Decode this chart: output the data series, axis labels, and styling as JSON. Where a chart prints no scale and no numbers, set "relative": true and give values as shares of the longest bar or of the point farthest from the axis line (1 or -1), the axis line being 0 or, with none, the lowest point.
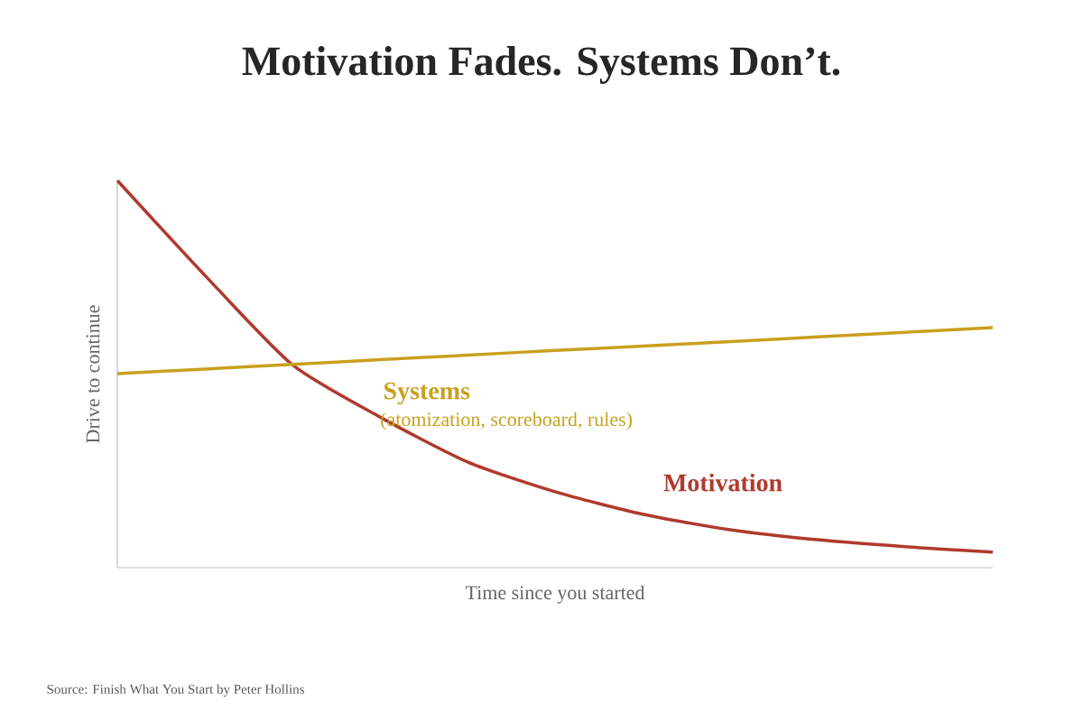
{
  "chart_data": {
    "type": "line",
    "title": "Motivation Fades. Systems Don’t.",
    "xlabel": "Time since you started",
    "ylabel": "Drive to continue",
    "relative": true,
    "categories": [
      null,
      null,
      null,
      null,
      null,
      null,
      null,
      null,
      null,
      null,
      null
    ],
    "series": [
      {
        "name": "Motivation",
        "color": "#b03a2e",
        "values": [
          1,
          0.755,
          0.524,
          0.389,
          0.273,
          0.196,
          0.138,
          0.098,
          0.072,
          0.054,
          0.04
        ]
      },
      {
        "name": "Systems",
        "color": "#c9a01e",
        "values": [
          0.501,
          0.513,
          0.525,
          0.537,
          0.549,
          0.561,
          0.572,
          0.584,
          0.596,
          0.608,
          0.62
        ]
      }
    ],
    "annotations": [
      "(atomization, scoreboard, rules)",
      "Source: Finish What You Start by Peter Hollins"
    ],
    "marker": "none",
    "line_style": "solid"
  }
}
